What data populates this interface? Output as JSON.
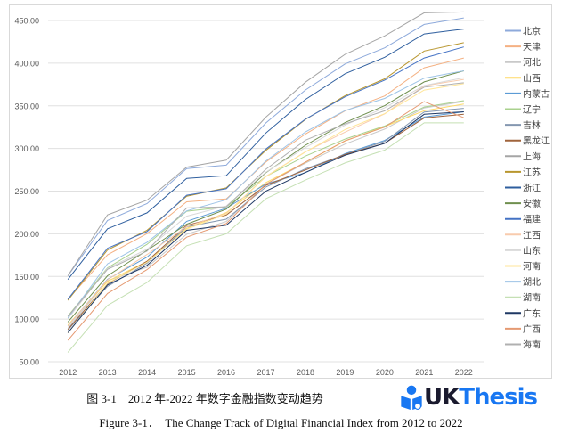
{
  "chart_data": {
    "type": "line",
    "title": "",
    "xlabel": "",
    "ylabel": "",
    "x": [
      "2012",
      "2013",
      "2014",
      "2015",
      "2016",
      "2017",
      "2018",
      "2019",
      "2020",
      "2021",
      "2022"
    ],
    "ylim": [
      50,
      450
    ],
    "yticks": [
      "50.00",
      "100.00",
      "150.00",
      "200.00",
      "250.00",
      "300.00",
      "350.00",
      "400.00",
      "450.00"
    ],
    "grid": true,
    "legend": "right",
    "series": [
      {
        "name": "北京",
        "color": "#8eaadb",
        "values": [
          150.7,
          215.6,
          235.4,
          276.4,
          280.4,
          329.9,
          368.5,
          399.0,
          417.9,
          445.4,
          453
        ]
      },
      {
        "name": "天津",
        "color": "#f4b183",
        "values": [
          123.0,
          175.3,
          200.2,
          237.5,
          240.8,
          284.0,
          316.9,
          344.1,
          361.5,
          394.5,
          406
        ]
      },
      {
        "name": "河北",
        "color": "#c9c9c9",
        "values": [
          89.3,
          145.0,
          160.8,
          199.5,
          214.4,
          258.2,
          282.8,
          305.1,
          322.7,
          347.5,
          355
        ]
      },
      {
        "name": "山西",
        "color": "#ffd966",
        "values": [
          93.0,
          144.2,
          167.7,
          206.3,
          224.8,
          260.0,
          283.7,
          308.7,
          325.7,
          344.2,
          352
        ]
      },
      {
        "name": "内蒙古",
        "color": "#5b9bd5",
        "values": [
          91.7,
          146.6,
          172.6,
          214.6,
          229.9,
          258.5,
          271.6,
          293.9,
          309.4,
          336.8,
          343
        ]
      },
      {
        "name": "辽宁",
        "color": "#a9d18e",
        "values": [
          103.5,
          160.1,
          187.6,
          226.4,
          231.4,
          267.2,
          291.0,
          311.0,
          326.3,
          348.6,
          356
        ]
      },
      {
        "name": "吉林",
        "color": "#8497b0",
        "values": [
          87.2,
          138.4,
          165.6,
          208.2,
          217.1,
          254.8,
          276.1,
          292.8,
          308.3,
          342.7,
          347
        ]
      },
      {
        "name": "黑龙江",
        "color": "#a0643c",
        "values": [
          87.9,
          141.4,
          167.8,
          209.9,
          221.9,
          256.8,
          274.7,
          292.9,
          306.1,
          335.7,
          340
        ]
      },
      {
        "name": "上海",
        "color": "#a5a5a5",
        "values": [
          150.8,
          222.1,
          239.5,
          278.1,
          286.2,
          336.7,
          377.7,
          410.3,
          431.9,
          459.0,
          460
        ]
      },
      {
        "name": "江苏",
        "color": "#b8962e",
        "values": [
          122.0,
          181.0,
          204.2,
          244.0,
          253.8,
          297.7,
          334.0,
          361.9,
          381.6,
          414.2,
          424
        ]
      },
      {
        "name": "浙江",
        "color": "#2e5e9e",
        "values": [
          146.4,
          205.8,
          224.5,
          264.9,
          268.1,
          318.1,
          357.5,
          387.5,
          406.9,
          434.2,
          440
        ]
      },
      {
        "name": "安徽",
        "color": "#6f8f4e",
        "values": [
          96.6,
          150.8,
          180.6,
          211.3,
          228.8,
          271.6,
          303.8,
          330.3,
          350.2,
          378.0,
          391
        ]
      },
      {
        "name": "福建",
        "color": "#4472c4",
        "values": [
          123.2,
          183.1,
          202.6,
          245.2,
          252.7,
          299.3,
          334.4,
          360.5,
          380.1,
          406.0,
          419
        ]
      },
      {
        "name": "江西",
        "color": "#f8cbad",
        "values": [
          91.9,
          146.1,
          175.7,
          208.4,
          223.8,
          267.2,
          296.2,
          319.1,
          340.6,
          373.3,
          381
        ]
      },
      {
        "name": "山东",
        "color": "#d9d9d9",
        "values": [
          100.4,
          159.3,
          181.9,
          220.7,
          232.6,
          272.1,
          301.1,
          327.4,
          347.8,
          373.8,
          383
        ]
      },
      {
        "name": "河南",
        "color": "#ffe699",
        "values": [
          83.7,
          142.1,
          166.7,
          205.3,
          223.1,
          266.9,
          295.8,
          322.1,
          340.8,
          368.4,
          376
        ]
      },
      {
        "name": "湖北",
        "color": "#9dc3e6",
        "values": [
          101.4,
          164.8,
          190.1,
          226.8,
          239.9,
          285.3,
          319.5,
          344.4,
          358.6,
          382.4,
          391
        ]
      },
      {
        "name": "湖南",
        "color": "#c5e0b4",
        "values": [
          61.0,
          116.0,
          143.0,
          186.0,
          200.0,
          241.0,
          263.0,
          283.0,
          298.0,
          330.0,
          330
        ]
      },
      {
        "name": "广东",
        "color": "#1f3864",
        "values": [
          84.0,
          140.0,
          163.0,
          204.0,
          210.0,
          250.0,
          272.0,
          292.0,
          306.0,
          340.0,
          343
        ]
      },
      {
        "name": "广西",
        "color": "#e59a72",
        "values": [
          75.0,
          130.0,
          158.0,
          196.0,
          212.0,
          258.0,
          284.0,
          309.0,
          325.0,
          355.0,
          336
        ]
      },
      {
        "name": "海南",
        "color": "#b0b0b0",
        "values": [
          102.9,
          158.3,
          179.6,
          230.3,
          231.6,
          275.6,
          309.7,
          328.8,
          344.1,
          371.9,
          377
        ]
      }
    ]
  },
  "caption": {
    "cn": "图 3-1　2012 年-2022 年数字金融指数变动趋势",
    "en": "Figure 3-1．　The Change Track of Digital Financial Index from 2012 to 2022"
  },
  "watermark": {
    "text_uk": "UK",
    "text_thesis": "Thesis"
  }
}
